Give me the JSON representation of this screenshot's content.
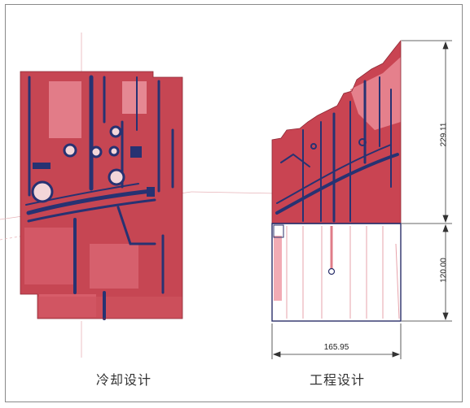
{
  "captions": {
    "left": "冷却设计",
    "right": "工程设计"
  },
  "dimensions": {
    "upper_height": "229.11",
    "lower_height": "120.00",
    "width": "165.95"
  },
  "colors": {
    "mold_red": "#c9414e",
    "mold_light": "#e6838f",
    "channel_blue": "#26306a",
    "frame": "#8a8a8a"
  }
}
